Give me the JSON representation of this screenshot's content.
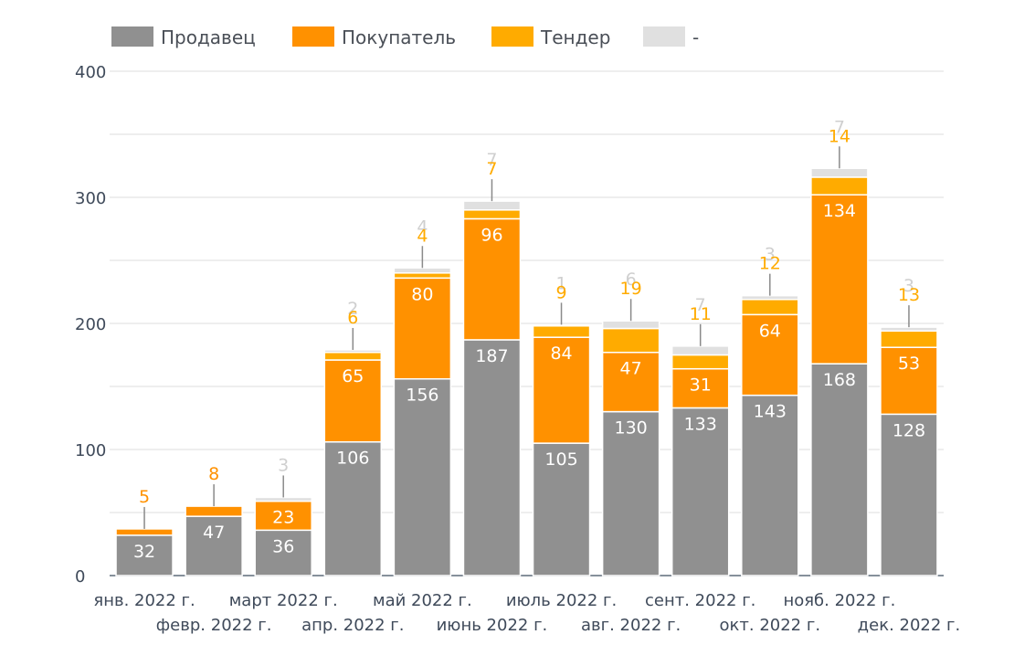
{
  "chart_data": {
    "type": "bar",
    "stacked": true,
    "categories": [
      "янв. 2022 г.",
      "февр. 2022 г.",
      "март 2022 г.",
      "апр. 2022 г.",
      "май 2022 г.",
      "июнь 2022 г.",
      "июль 2022 г.",
      "авг. 2022 г.",
      "сент. 2022 г.",
      "окт. 2022 г.",
      "нояб. 2022 г.",
      "дек. 2022 г."
    ],
    "series": [
      {
        "name": "Продавец",
        "color": "#909090",
        "values": [
          32,
          47,
          36,
          106,
          156,
          187,
          105,
          130,
          133,
          143,
          168,
          128
        ]
      },
      {
        "name": "Покупатель",
        "color": "#ff9100",
        "values": [
          5,
          8,
          23,
          65,
          80,
          96,
          84,
          47,
          31,
          64,
          134,
          53
        ]
      },
      {
        "name": "Тендер",
        "color": "#ffab00",
        "values": [
          0,
          0,
          0,
          6,
          4,
          7,
          9,
          19,
          11,
          12,
          14,
          13
        ]
      },
      {
        "name": "-",
        "color": "#e0e0e0",
        "values": [
          0,
          0,
          3,
          2,
          4,
          7,
          1,
          6,
          7,
          3,
          7,
          3
        ]
      }
    ],
    "ylim": [
      0,
      400
    ],
    "yticks": [
      0,
      100,
      200,
      300,
      400
    ],
    "grid": true,
    "legend": "top-left",
    "xlabel": "",
    "ylabel": ""
  }
}
